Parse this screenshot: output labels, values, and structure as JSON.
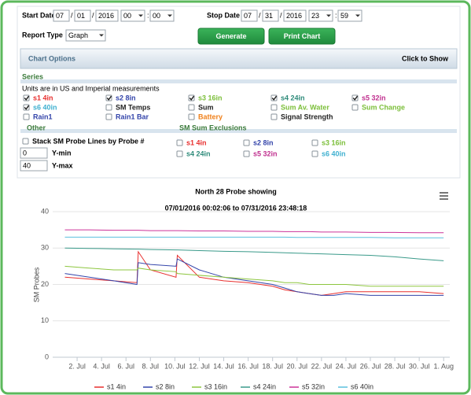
{
  "form": {
    "start_label": "Start Date",
    "stop_label": "Stop Date",
    "date_sep": "/",
    "time_sep": ":",
    "start": {
      "month": "07",
      "day": "01",
      "year": "2016",
      "hour": "00",
      "minute": "00"
    },
    "stop": {
      "month": "07",
      "day": "31",
      "year": "2016",
      "hour": "23",
      "minute": "59"
    },
    "report_type_label": "Report Type",
    "report_type": "Graph",
    "buttons": [
      "Generate",
      "Print Chart"
    ]
  },
  "options": {
    "title": "Chart Options",
    "toggle": "Click to Show",
    "series_heading": "Series",
    "units_note": "Units are in US and Imperial measurements",
    "series_checks": [
      {
        "label": "s1 4in",
        "checked": true,
        "color": "#e8302f"
      },
      {
        "label": "s2 8in",
        "checked": true,
        "color": "#3344aa"
      },
      {
        "label": "s3 16in",
        "checked": true,
        "color": "#7cbf3a"
      },
      {
        "label": "s4 24in",
        "checked": true,
        "color": "#2e8b7a"
      },
      {
        "label": "s5 32in",
        "checked": true,
        "color": "#c0308f"
      },
      {
        "label": "s6 40in",
        "checked": true,
        "color": "#3fb0d0"
      },
      {
        "label": "SM Temps",
        "checked": false,
        "color": "#222222"
      },
      {
        "label": "Sum",
        "checked": false,
        "color": "#222222"
      },
      {
        "label": "Sum Av. Water",
        "checked": false,
        "color": "#7cbf3a"
      },
      {
        "label": "Sum Change",
        "checked": false,
        "color": "#7cbf3a"
      },
      {
        "label": "Rain1",
        "checked": false,
        "color": "#3344aa"
      },
      {
        "label": "Rain1 Bar",
        "checked": false,
        "color": "#3344aa"
      },
      {
        "label": "Battery",
        "checked": false,
        "color": "#f0801a"
      },
      {
        "label": "Signal Strength",
        "checked": false,
        "color": "#222222"
      }
    ],
    "other_heading": "Other",
    "exclusions_heading": "SM Sum Exclusions",
    "stack_label": "Stack SM Probe Lines by Probe #",
    "ymin_value": "0",
    "ymin_label": "Y-min",
    "ymax_value": "40",
    "ymax_label": "Y-max",
    "exclusions": [
      {
        "label": "s1 4in",
        "checked": false,
        "color": "#e8302f"
      },
      {
        "label": "s2 8in",
        "checked": false,
        "color": "#3344aa"
      },
      {
        "label": "s3 16in",
        "checked": false,
        "color": "#7cbf3a"
      },
      {
        "label": "s4 24in",
        "checked": false,
        "color": "#2e8b7a"
      },
      {
        "label": "s5 32in",
        "checked": false,
        "color": "#c0308f"
      },
      {
        "label": "s6 40in",
        "checked": false,
        "color": "#3fb0d0"
      }
    ]
  },
  "chart_data": {
    "type": "line",
    "title": "North 28 Probe showing",
    "subtitle": "07/01/2016 00:02:06 to 07/31/2016 23:48:18",
    "y_label": "SM Probes",
    "x": [
      1,
      3,
      5,
      6.9,
      7,
      8,
      10.1,
      10.2,
      12,
      14,
      16,
      18,
      19,
      20,
      21,
      22,
      23,
      24,
      26,
      28,
      30,
      32
    ],
    "xlim": [
      0,
      32.5
    ],
    "xticks": [
      {
        "value": 2,
        "label": "2. Jul"
      },
      {
        "value": 4,
        "label": "4. Jul"
      },
      {
        "value": 6,
        "label": "6. Jul"
      },
      {
        "value": 8,
        "label": "8. Jul"
      },
      {
        "value": 10,
        "label": "10. Jul"
      },
      {
        "value": 12,
        "label": "12. Jul"
      },
      {
        "value": 14,
        "label": "14. Jul"
      },
      {
        "value": 16,
        "label": "16. Jul"
      },
      {
        "value": 18,
        "label": "18. Jul"
      },
      {
        "value": 20,
        "label": "20. Jul"
      },
      {
        "value": 22,
        "label": "22. Jul"
      },
      {
        "value": 24,
        "label": "24. Jul"
      },
      {
        "value": 26,
        "label": "26. Jul"
      },
      {
        "value": 28,
        "label": "28. Jul"
      },
      {
        "value": 30,
        "label": "30. Jul"
      },
      {
        "value": 32,
        "label": "1. Aug"
      }
    ],
    "ylim": [
      0,
      40
    ],
    "yticks": [
      0,
      10,
      20,
      30,
      40
    ],
    "grid": true,
    "legend": "bottom",
    "series": [
      {
        "name": "s1 4in",
        "color": "#e8302f",
        "values": [
          22,
          21.5,
          21,
          20.5,
          29,
          24,
          22,
          28,
          22,
          21,
          20.5,
          19.5,
          18.5,
          18,
          17.5,
          17,
          17.5,
          18,
          18,
          18,
          18,
          17.5
        ]
      },
      {
        "name": "s2 8in",
        "color": "#3344aa",
        "values": [
          23,
          22,
          21,
          20,
          26,
          25.5,
          25,
          27,
          24,
          22,
          21,
          20,
          19,
          18,
          17.5,
          17,
          17,
          17.5,
          17,
          17,
          17,
          17
        ]
      },
      {
        "name": "s3 16in",
        "color": "#8dc63f",
        "values": [
          25,
          24.5,
          24,
          24,
          24.5,
          24,
          23.5,
          23,
          22.5,
          22,
          21.5,
          21,
          20.5,
          20.5,
          20,
          20,
          20,
          20,
          19.5,
          19.5,
          19.5,
          19.5
        ]
      },
      {
        "name": "s4 24in",
        "color": "#3a9a8a",
        "values": [
          30,
          29.9,
          29.8,
          29.7,
          29.7,
          29.6,
          29.5,
          29.5,
          29.3,
          29.1,
          29,
          28.8,
          28.7,
          28.6,
          28.5,
          28.4,
          28.3,
          28.2,
          28,
          27.6,
          27,
          26.5
        ]
      },
      {
        "name": "s5 32in",
        "color": "#cc3399",
        "values": [
          35,
          35,
          34.9,
          34.9,
          34.9,
          34.8,
          34.8,
          34.8,
          34.7,
          34.7,
          34.6,
          34.6,
          34.5,
          34.5,
          34.5,
          34.4,
          34.4,
          34.4,
          34.3,
          34.3,
          34.2,
          34.2
        ]
      },
      {
        "name": "s6 40in",
        "color": "#5bc0de",
        "values": [
          33,
          33,
          33,
          33,
          33,
          33,
          33,
          33,
          33,
          33,
          33,
          33,
          33,
          32.9,
          32.9,
          32.9,
          32.9,
          32.9,
          32.9,
          32.8,
          32.8,
          32.8
        ]
      }
    ]
  }
}
